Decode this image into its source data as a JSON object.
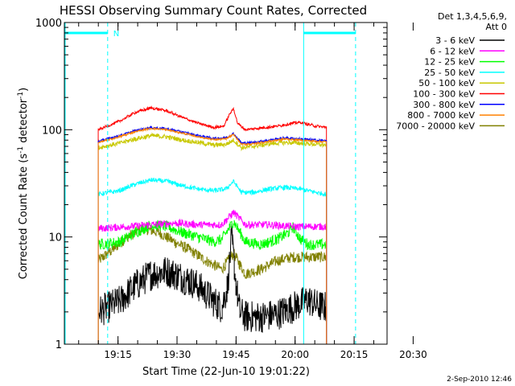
{
  "chart_data": {
    "type": "line",
    "title": "HESSI Observing Summary Count Rates, Corrected",
    "xlabel": "Start Time (22-Jun-10 19:01:22)",
    "ylabel_main": "Corrected Count Rate (s",
    "ylabel_sup1": "-1",
    "ylabel_mid": " detector",
    "ylabel_sup2": "-1",
    "ylabel_end": ")",
    "yscale": "log",
    "ylim": [
      1,
      1000
    ],
    "xlim_minutes": [
      0,
      82
    ],
    "x_unit": "minutes after 19:01:22",
    "x_ticks": [
      {
        "m": 13.63,
        "label": "19:15"
      },
      {
        "m": 28.63,
        "label": "19:30"
      },
      {
        "m": 43.63,
        "label": "19:45"
      },
      {
        "m": 58.63,
        "label": "20:00"
      },
      {
        "m": 73.63,
        "label": "20:15"
      },
      {
        "m": 88.63,
        "label": "20:30"
      }
    ],
    "y_ticks": [
      {
        "v": 1,
        "label": "1"
      },
      {
        "v": 10,
        "label": "10"
      },
      {
        "v": 100,
        "label": "100"
      },
      {
        "v": 1000,
        "label": "1000"
      }
    ],
    "legend_header": [
      "Det 1,3,4,5,6,9,",
      "Att 0"
    ],
    "legend_position": "right",
    "night_label": "N",
    "data_range_minutes": [
      8.6,
      66.6
    ],
    "markers_solid": [
      0,
      60.8
    ],
    "markers_dashed": [
      11.0,
      74.0
    ],
    "series": [
      {
        "name": "3 - 6 keV",
        "color": "#000000",
        "x": [
          8.6,
          14,
          18,
          22,
          26,
          30,
          34,
          38,
          40,
          41.5,
          42.5,
          43.5,
          44.5,
          46,
          50,
          54,
          58,
          62,
          64,
          66.6
        ],
        "y": [
          2,
          2.5,
          3.5,
          4.5,
          4.8,
          4.2,
          3.5,
          2.5,
          2.2,
          3.5,
          10,
          4,
          2,
          1.8,
          1.8,
          1.9,
          2.2,
          2.6,
          2.3,
          2.2
        ],
        "noise": 0.35
      },
      {
        "name": "6 - 12 keV",
        "color": "#ff00ff",
        "x": [
          8.6,
          16,
          22,
          28,
          34,
          40,
          43,
          46,
          52,
          58,
          62,
          66.6
        ],
        "y": [
          12,
          12.5,
          13,
          13.5,
          13,
          13,
          17,
          13,
          13,
          12.5,
          12.5,
          12.5
        ],
        "noise": 0.08
      },
      {
        "name": "12 - 25 keV",
        "color": "#00ff00",
        "x": [
          8.6,
          14,
          18,
          22,
          26,
          30,
          34,
          38,
          40,
          43,
          46,
          50,
          54,
          57,
          58,
          60,
          62,
          64,
          66.6
        ],
        "y": [
          8.5,
          9,
          11,
          13,
          12.5,
          11,
          10,
          9,
          9.5,
          14,
          9,
          8.5,
          9.5,
          11,
          12.5,
          9.5,
          8.5,
          8.5,
          8.5
        ],
        "noise": 0.12
      },
      {
        "name": "25 - 50 keV",
        "color": "#00ffff",
        "x": [
          8.6,
          14,
          18,
          22,
          26,
          30,
          34,
          38,
          41,
          43,
          45,
          48,
          52,
          56,
          60,
          64,
          66.6
        ],
        "y": [
          25,
          27,
          31,
          34,
          33,
          30,
          28,
          27,
          28,
          33,
          26,
          26,
          28,
          29,
          28,
          26,
          25
        ],
        "noise": 0.05
      },
      {
        "name": "50 - 100 keV",
        "color": "#c8c800",
        "x": [
          8.6,
          14,
          18,
          22,
          26,
          30,
          34,
          38,
          41,
          43,
          45,
          48,
          52,
          56,
          60,
          64,
          66.6
        ],
        "y": [
          68,
          75,
          82,
          88,
          86,
          80,
          76,
          72,
          73,
          80,
          68,
          70,
          74,
          76,
          75,
          73,
          72
        ],
        "noise": 0.05
      },
      {
        "name": "100 - 300 keV",
        "color": "#ff0000",
        "x": [
          8.6,
          14,
          18,
          22,
          26,
          30,
          34,
          38,
          40.5,
          42,
          43,
          44,
          46,
          50,
          54,
          58,
          60,
          62,
          64,
          66.6
        ],
        "y": [
          100,
          120,
          145,
          160,
          150,
          130,
          115,
          105,
          108,
          140,
          158,
          115,
          100,
          104,
          108,
          115,
          117,
          112,
          108,
          105
        ],
        "noise": 0.03
      },
      {
        "name": "300 - 800 keV",
        "color": "#0000ff",
        "x": [
          8.6,
          14,
          18,
          22,
          26,
          30,
          34,
          38,
          41,
          43,
          45,
          48,
          52,
          56,
          60,
          64,
          66.6
        ],
        "y": [
          78,
          88,
          98,
          105,
          102,
          95,
          88,
          83,
          84,
          92,
          75,
          76,
          80,
          84,
          82,
          80,
          79
        ],
        "noise": 0.025
      },
      {
        "name": "800 - 7000 keV",
        "color": "#ff8000",
        "x": [
          8.6,
          14,
          18,
          22,
          26,
          30,
          34,
          38,
          41,
          43,
          45,
          48,
          52,
          56,
          60,
          64,
          66.6
        ],
        "y": [
          76,
          86,
          96,
          103,
          100,
          93,
          86,
          81,
          82,
          90,
          73,
          74,
          78,
          82,
          80,
          78,
          77
        ],
        "noise": 0.02
      },
      {
        "name": "7000 - 20000 keV",
        "color": "#808000",
        "x": [
          8.6,
          12,
          16,
          20,
          24,
          28,
          32,
          36,
          40,
          43,
          46,
          50,
          54,
          58,
          62,
          66.6
        ],
        "y": [
          6,
          7.5,
          10,
          12,
          11,
          9,
          7.5,
          6,
          5,
          7,
          4.5,
          5,
          6,
          6.5,
          6.5,
          6.5
        ],
        "noise": 0.12
      }
    ]
  },
  "timestamp": "2-Sep-2010 12:46"
}
